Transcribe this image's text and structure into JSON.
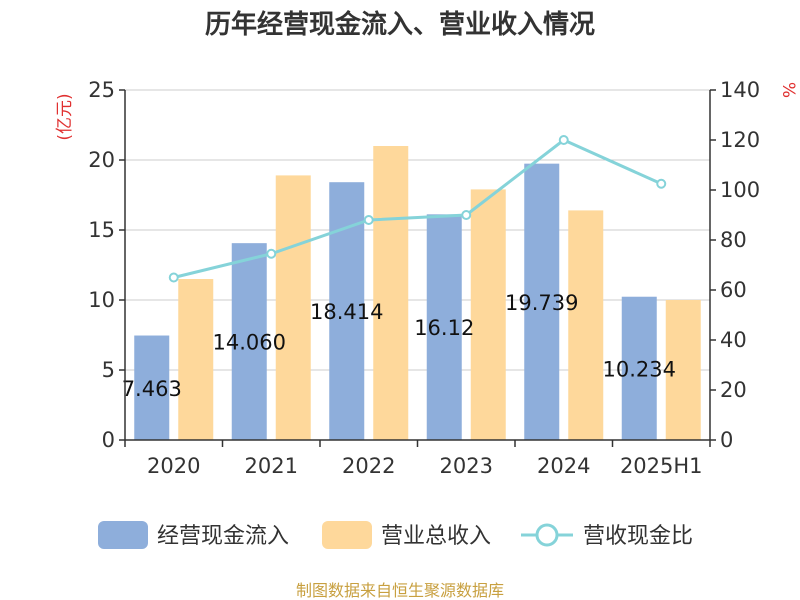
{
  "chart_data": {
    "type": "bar",
    "title": "历年经营现金流入、营业收入情况",
    "categories": [
      "2020",
      "2021",
      "2022",
      "2023",
      "2024",
      "2025H1"
    ],
    "y_left": {
      "unit": "(亿元)",
      "ylim": [
        0,
        25
      ],
      "ticks": [
        0,
        5,
        10,
        15,
        20,
        25
      ]
    },
    "y_right": {
      "unit": "%",
      "ylim": [
        0,
        140
      ],
      "ticks": [
        0,
        20,
        40,
        60,
        80,
        100,
        120,
        140
      ]
    },
    "grid": true,
    "legend_position": "bottom",
    "series": [
      {
        "name": "经营现金流入",
        "type": "bar",
        "axis": "left",
        "color": "#8eaedb",
        "values": [
          7.463,
          14.06,
          18.414,
          16.12,
          19.739,
          10.234
        ],
        "data_labels": [
          "7.463",
          "14.060",
          "18.414",
          "16.12",
          "19.739",
          "10.234"
        ]
      },
      {
        "name": "营业总收入",
        "type": "bar",
        "axis": "left",
        "color": "#fed89b",
        "values": [
          11.5,
          18.9,
          21.0,
          17.9,
          16.4,
          10.0
        ]
      },
      {
        "name": "营收现金比",
        "type": "line",
        "axis": "right",
        "color": "#85d3d9",
        "values": [
          65,
          74.5,
          88,
          90,
          120,
          102.5
        ]
      }
    ]
  },
  "source_text": "制图数据来自恒生聚源数据库",
  "colors": {
    "left_unit": "#e03030",
    "right_unit": "#e03030",
    "source": "#c8a040",
    "grid": "#cccccc",
    "axis": "#333333"
  }
}
